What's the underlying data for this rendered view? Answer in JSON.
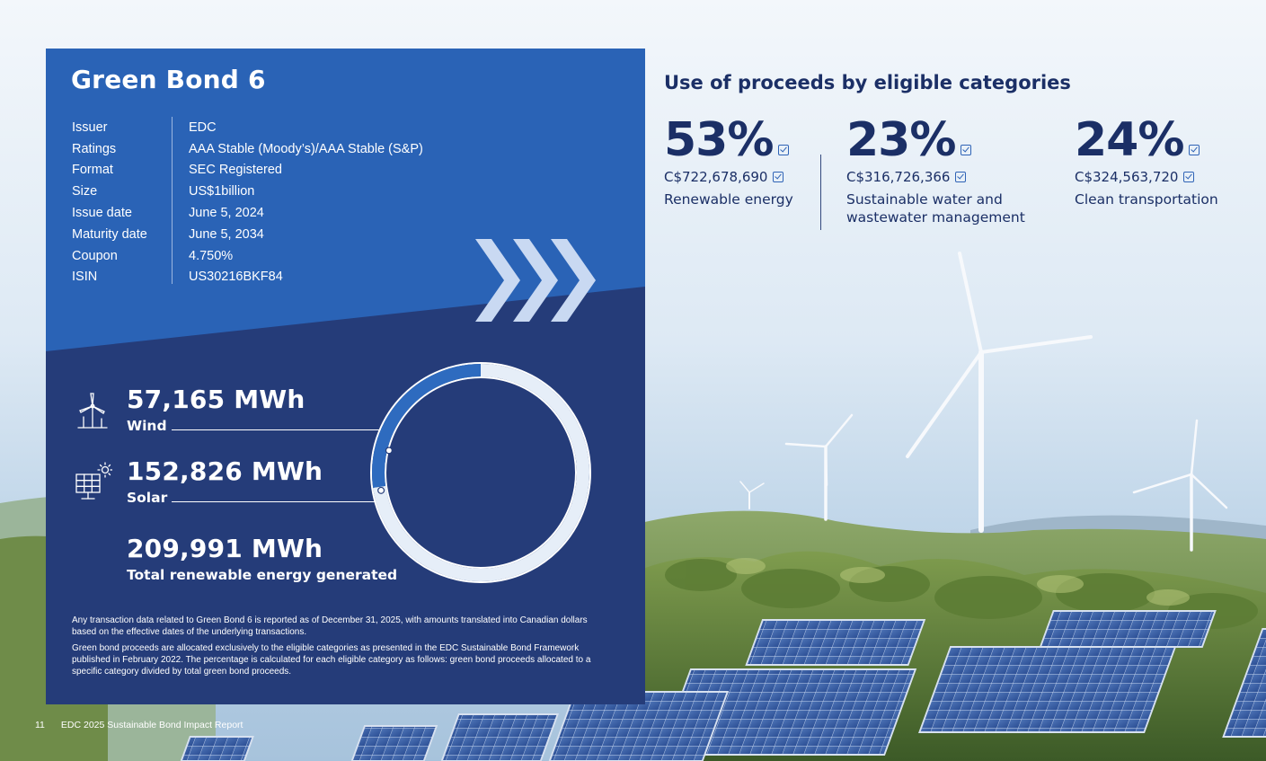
{
  "bond": {
    "title": "Green Bond 6",
    "terms": [
      {
        "label": "Issuer",
        "value": "EDC"
      },
      {
        "label": "Ratings",
        "value": "AAA Stable (Moody’s)/AAA Stable (S&P)"
      },
      {
        "label": "Format",
        "value": "SEC Registered"
      },
      {
        "label": "Size",
        "value": "US$1billion"
      },
      {
        "label": "Issue date",
        "value": "June 5, 2024"
      },
      {
        "label": "Maturity date",
        "value": "June 5, 2034"
      },
      {
        "label": "Coupon",
        "value": "4.750%"
      },
      {
        "label": "ISIN",
        "value": "US30216BKF84"
      }
    ]
  },
  "energy": {
    "wind": {
      "value": "57,165 MWh",
      "label": "Wind",
      "icon": "wind-turbine-icon"
    },
    "solar": {
      "value": "152,826 MWh",
      "label": "Solar",
      "icon": "solar-panel-icon"
    },
    "total": {
      "value": "209,991 MWh",
      "label": "Total renewable energy generated"
    },
    "wind_share": 0.2722,
    "colors": {
      "wind": "#2e6bbf",
      "solar": "#e6eef8",
      "ring": "#ffffff"
    }
  },
  "footnotes": [
    "Any transaction data related to Green Bond 6 is reported as of December 31, 2025, with amounts translated into Canadian dollars based on the effective dates of the underlying transactions.",
    "Green bond proceeds are allocated exclusively to the eligible categories as presented in the EDC Sustainable Bond Framework published in February 2022. The percentage is calculated for each eligible category as follows: green bond proceeds allocated to a specific category divided by total green bond proceeds."
  ],
  "use_of_proceeds": {
    "title": "Use of proceeds by eligible categories",
    "categories": [
      {
        "pct": "53%",
        "amount": "C$722,678,690",
        "name_lines": [
          "Renewable energy"
        ]
      },
      {
        "pct": "23%",
        "amount": "C$316,726,366",
        "name_lines": [
          "Sustainable water and",
          "wastewater management"
        ]
      },
      {
        "pct": "24%",
        "amount": "C$324,563,720",
        "name_lines": [
          "Clean transportation"
        ]
      }
    ]
  },
  "footer": {
    "page_number": "11",
    "report_title": "EDC 2025 Sustainable Bond Impact Report"
  },
  "colors": {
    "panel_top": "#2a63b6",
    "panel_bottom": "#253c79",
    "heading": "#1b2f66",
    "accent": "#2f63b6"
  }
}
